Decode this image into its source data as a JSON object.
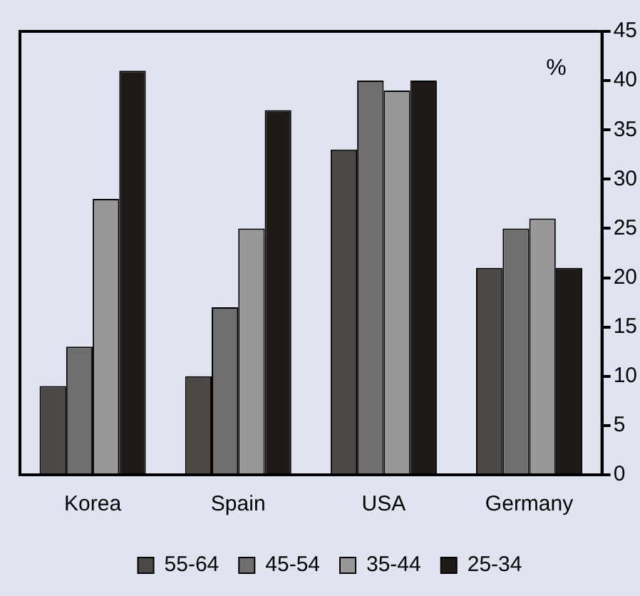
{
  "chart_data": {
    "type": "bar",
    "categories": [
      "Korea",
      "Spain",
      "USA",
      "Germany"
    ],
    "series": [
      {
        "name": "55-64",
        "color": "#4d4846",
        "values": [
          9,
          10,
          33,
          21
        ]
      },
      {
        "name": "45-54",
        "color": "#706e6c",
        "values": [
          13,
          17,
          40,
          25
        ]
      },
      {
        "name": "35-44",
        "color": "#9a9896",
        "values": [
          28,
          25,
          39,
          26
        ]
      },
      {
        "name": "25-34",
        "color": "#1f1a17",
        "values": [
          41,
          37,
          40,
          21
        ]
      }
    ],
    "ylim": [
      0,
      45
    ],
    "yticks": [
      0,
      5,
      10,
      15,
      20,
      25,
      30,
      35,
      40,
      45
    ],
    "annotations": [
      "%"
    ],
    "grid": false,
    "legend": "bottom"
  }
}
